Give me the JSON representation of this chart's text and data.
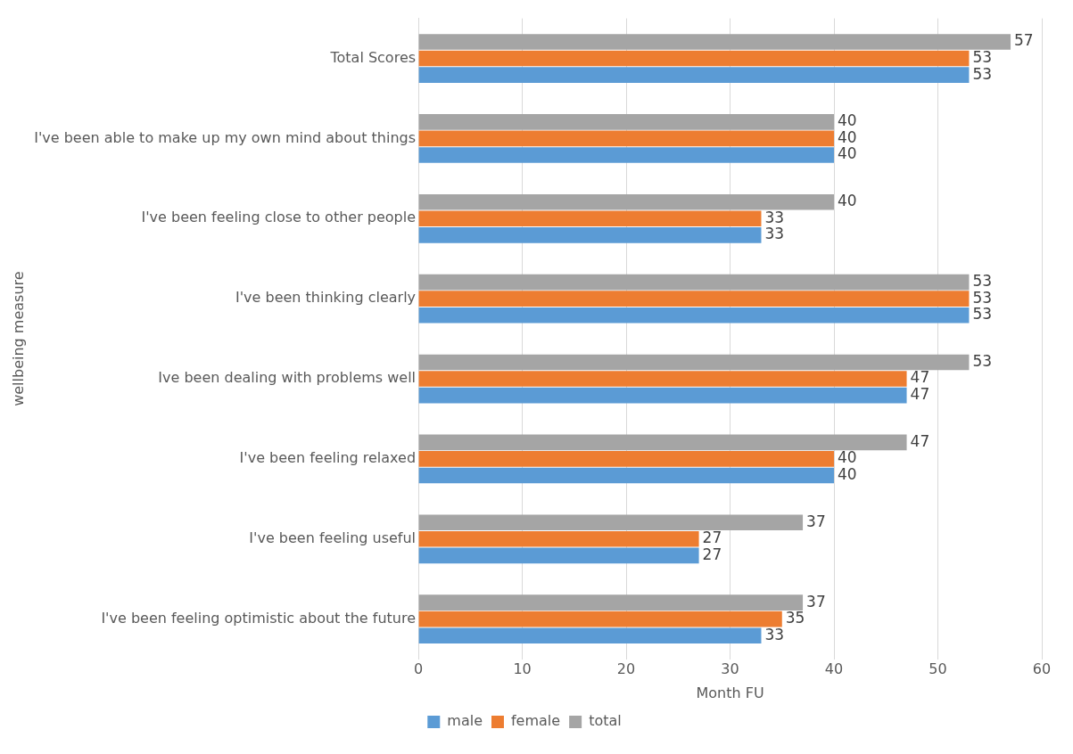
{
  "chart_data": {
    "type": "bar",
    "orientation": "horizontal",
    "ylabel": "wellbeing measure",
    "xlabel": "Month FU",
    "categories": [
      "Total Scores",
      "I've been able to make up my own mind about things",
      "I've been feeling close to other people",
      "I've been thinking clearly",
      "Ive been dealing with problems well",
      "I've been feeling relaxed",
      "I've been feeling useful",
      "I've been feeling optimistic about the future"
    ],
    "series": [
      {
        "name": "male",
        "color": "#5b9bd5",
        "values": [
          53,
          40,
          33,
          53,
          47,
          40,
          27,
          33
        ]
      },
      {
        "name": "female",
        "color": "#ed7d31",
        "values": [
          53,
          40,
          33,
          53,
          47,
          40,
          27,
          35
        ]
      },
      {
        "name": "total",
        "color": "#a5a5a5",
        "values": [
          57,
          40,
          40,
          53,
          53,
          47,
          37,
          37
        ]
      }
    ],
    "xlim": [
      0,
      60
    ],
    "xticks": [
      0,
      10,
      20,
      30,
      40,
      50,
      60
    ],
    "grid": "x",
    "legend": "bottom",
    "data_labels": true
  }
}
